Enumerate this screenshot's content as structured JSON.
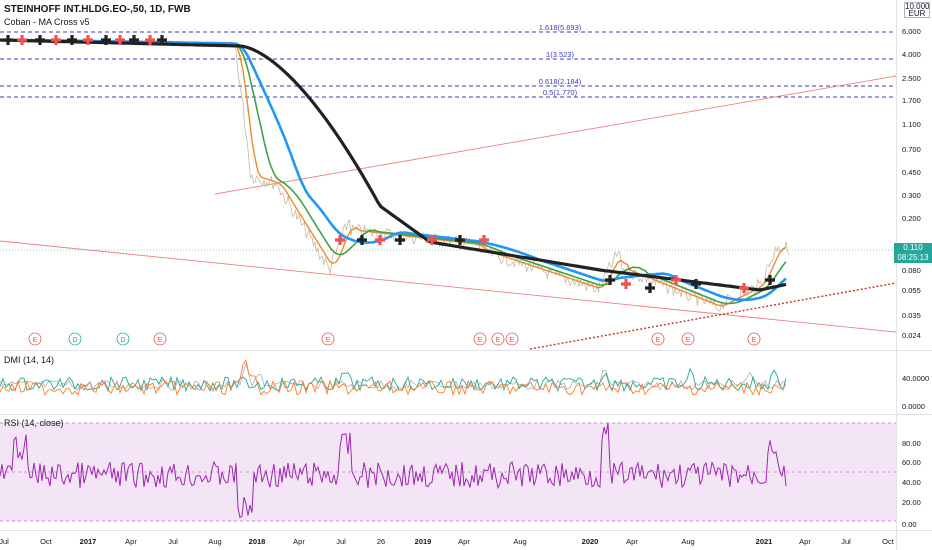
{
  "header": {
    "symbol_title": "STEINHOFF INT.HLDG.EO-,50, 1D, FWB",
    "indicator_name": "Coban - MA Cross v5",
    "currency_top": "10.000",
    "currency_unit": "EUR"
  },
  "price_tag": {
    "value": "0.110",
    "countdown": "08:25:13",
    "color": "#26a69a"
  },
  "fib_levels": [
    {
      "label": "1.618(5.693)",
      "value": 5.693
    },
    {
      "label": "1(3.523)",
      "value": 3.523
    },
    {
      "label": "0.618(2.184)",
      "value": 2.184
    },
    {
      "label": "0.5(1.770)",
      "value": 1.77
    }
  ],
  "price_axis": [
    "6.000",
    "4.000",
    "2.500",
    "1.700",
    "1.100",
    "0.700",
    "0.450",
    "0.300",
    "0.200",
    "0.130",
    "0.080",
    "0.055",
    "0.035",
    "0.024"
  ],
  "events": [
    {
      "label": "E",
      "type": "earnings"
    },
    {
      "label": "D",
      "type": "dividend"
    },
    {
      "label": "D",
      "type": "dividend"
    },
    {
      "label": "E",
      "type": "earnings"
    },
    {
      "label": "E",
      "type": "earnings"
    },
    {
      "label": "E",
      "type": "earnings"
    },
    {
      "label": "E",
      "type": "earnings"
    },
    {
      "label": "E",
      "type": "earnings"
    },
    {
      "label": "E",
      "type": "earnings"
    },
    {
      "label": "E",
      "type": "earnings"
    },
    {
      "label": "E",
      "type": "earnings"
    }
  ],
  "dmi": {
    "label": "DMI (14, 14)",
    "axis": [
      "40.0000",
      "0.0000"
    ]
  },
  "rsi": {
    "label": "RSI (14, close)",
    "axis": [
      "80.00",
      "60.00",
      "40.00",
      "20.00",
      "0.00"
    ]
  },
  "time_axis": [
    "Jul",
    "Oct",
    "2017",
    "Apr",
    "Jul",
    "Aug",
    "2018",
    "Apr",
    "Jul",
    "26",
    "2019",
    "Apr",
    "Aug",
    "2020",
    "Apr",
    "Aug",
    "2021",
    "Apr",
    "Jul",
    "Oct"
  ],
  "colors": {
    "ma_black": "#222222",
    "ma_blue": "#2196f3",
    "ma_green": "#43a047",
    "ma_orange": "#ef8a2f",
    "rsi": "#9c27b0",
    "rsi_band": "#f3e5f5",
    "dmi_plus": "#26a69a",
    "dmi_minus": "#ff7f2a",
    "fib": "#3d3dbd",
    "trend": "#f08080"
  }
}
